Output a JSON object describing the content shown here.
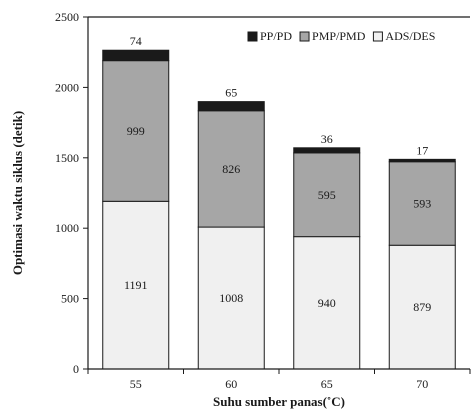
{
  "chart_data": {
    "type": "bar",
    "stacked": true,
    "title": "",
    "xlabel": "Suhu sumber panas(˚C)",
    "ylabel": "Optimasi waktu siklus (detik)",
    "categories": [
      "55",
      "60",
      "65",
      "70"
    ],
    "ylim": [
      0,
      2500
    ],
    "yticks": [
      "0",
      "500",
      "1000",
      "1500",
      "2000",
      "2500"
    ],
    "grid": false,
    "legend_position": "top-right",
    "series": [
      {
        "name": "ADS/DES",
        "values": [
          1191,
          1008,
          940,
          879
        ],
        "color": "#f0f0f0",
        "labels": [
          "1191",
          "1008",
          "940",
          "879"
        ]
      },
      {
        "name": "PMP/PMD",
        "values": [
          999,
          826,
          595,
          593
        ],
        "color": "#a6a6a6",
        "labels": [
          "999",
          "826",
          "595",
          "593"
        ]
      },
      {
        "name": "PP/PD",
        "values": [
          74,
          65,
          36,
          17
        ],
        "color": "#1a1a1a",
        "labels": [
          "74",
          "65",
          "36",
          "17"
        ]
      }
    ],
    "legend_order": [
      "PP/PD",
      "PMP/PMD",
      "ADS/DES"
    ]
  }
}
